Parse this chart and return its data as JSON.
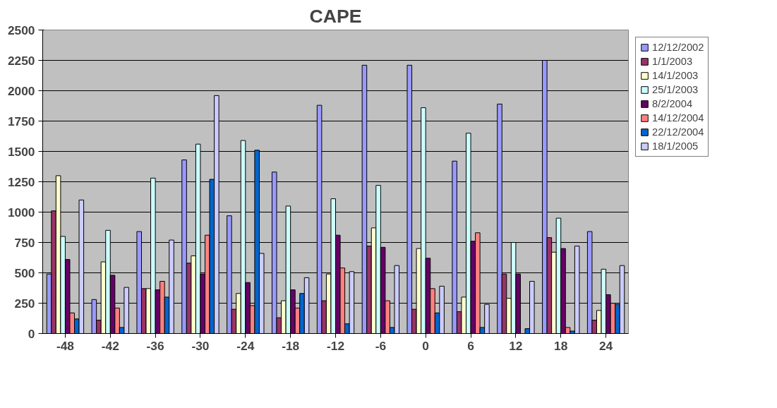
{
  "chart_data": {
    "type": "bar",
    "title": "CAPE",
    "categories": [
      "-48",
      "-42",
      "-36",
      "-30",
      "-24",
      "-18",
      "-12",
      "-6",
      "0",
      "6",
      "12",
      "18",
      "24"
    ],
    "ylim": [
      0,
      2500
    ],
    "yticks": [
      0,
      250,
      500,
      750,
      1000,
      1250,
      1500,
      1750,
      2000,
      2250,
      2500
    ],
    "grid": "y",
    "legend": "right",
    "series": [
      {
        "name": "12/12/2002",
        "color": "#9999ff",
        "values": [
          490,
          280,
          840,
          1430,
          970,
          1330,
          1880,
          2210,
          2210,
          1420,
          1890,
          2250,
          840
        ]
      },
      {
        "name": "1/1/2003",
        "color": "#993366",
        "values": [
          1010,
          110,
          370,
          580,
          200,
          130,
          270,
          720,
          200,
          180,
          490,
          790,
          110
        ]
      },
      {
        "name": "14/1/2003",
        "color": "#ffffcc",
        "values": [
          1300,
          590,
          370,
          640,
          330,
          270,
          490,
          870,
          700,
          300,
          290,
          670,
          190
        ]
      },
      {
        "name": "25/1/2003",
        "color": "#ccffff",
        "values": [
          800,
          850,
          1280,
          1560,
          1590,
          1050,
          1110,
          1220,
          1860,
          1650,
          750,
          950,
          530
        ]
      },
      {
        "name": "8/2/2004",
        "color": "#660066",
        "values": [
          610,
          480,
          360,
          490,
          420,
          360,
          810,
          710,
          620,
          760,
          490,
          700,
          320
        ]
      },
      {
        "name": "14/12/2004",
        "color": "#ff8080",
        "values": [
          170,
          210,
          430,
          810,
          230,
          210,
          540,
          270,
          370,
          830,
          null,
          50,
          250
        ]
      },
      {
        "name": "22/12/2004",
        "color": "#0066cc",
        "values": [
          120,
          50,
          300,
          1270,
          1510,
          330,
          80,
          50,
          170,
          50,
          40,
          20,
          240
        ]
      },
      {
        "name": "18/1/2005",
        "color": "#ccccff",
        "values": [
          1100,
          380,
          770,
          1960,
          660,
          460,
          510,
          560,
          390,
          240,
          430,
          720,
          560
        ]
      }
    ]
  }
}
